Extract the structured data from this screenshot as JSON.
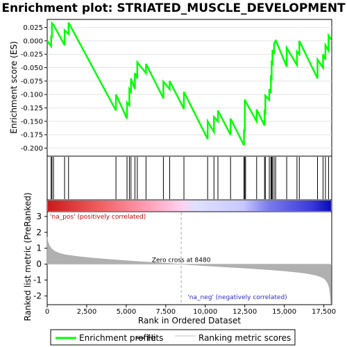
{
  "chart_data": {
    "title": "Enrichment plot: STRIATED_MUSCLE_DEVELOPMENT",
    "top_panel": {
      "type": "line",
      "ylabel": "Enrichment score (ES)",
      "ylim": [
        -0.215,
        0.04
      ],
      "yticks": [
        0.025,
        0.0,
        -0.025,
        -0.05,
        -0.075,
        -0.1,
        -0.125,
        -0.15,
        -0.175,
        -0.2
      ],
      "ytick_labels": [
        "0.025",
        "0.000",
        "-0.025",
        "-0.050",
        "-0.075",
        "-0.100",
        "-0.125",
        "-0.150",
        "-0.175",
        "-0.200"
      ],
      "series": [
        {
          "name": "Enrichment profile",
          "color": "#00ff00",
          "x": [
            0,
            250,
            250,
            300,
            300,
            400,
            400,
            1100,
            1100,
            1350,
            1350,
            4350,
            4350,
            5050,
            5050,
            5200,
            5200,
            5300,
            5300,
            5550,
            5550,
            5700,
            5700,
            6250,
            6250,
            7350,
            7350,
            7750,
            7750,
            8650,
            8650,
            10150,
            10150,
            10550,
            10550,
            10800,
            10800,
            11600,
            11600,
            12450,
            12450,
            12500,
            12500,
            12550,
            12550,
            13250,
            13250,
            13750,
            13750,
            13800,
            13800,
            14050,
            14050,
            14150,
            14150,
            14200,
            14200,
            14250,
            14250,
            14350,
            14350,
            14450,
            14450,
            15150,
            15150,
            15800,
            15800,
            15950,
            15950,
            17100,
            17100,
            17450,
            17450,
            17600,
            17600,
            17800,
            17800,
            17950
          ],
          "y": [
            0.0,
            -0.01,
            0.01,
            0.005,
            0.033,
            0.03,
            0.03,
            -0.008,
            0.02,
            0.013,
            0.034,
            -0.13,
            -0.1,
            -0.145,
            -0.115,
            -0.12,
            -0.09,
            -0.095,
            -0.07,
            -0.09,
            -0.06,
            -0.07,
            -0.04,
            -0.06,
            -0.043,
            -0.107,
            -0.076,
            -0.09,
            -0.075,
            -0.127,
            -0.095,
            -0.183,
            -0.15,
            -0.17,
            -0.142,
            -0.15,
            -0.13,
            -0.175,
            -0.145,
            -0.195,
            -0.165,
            -0.17,
            -0.11,
            -0.115,
            -0.113,
            -0.15,
            -0.128,
            -0.158,
            -0.132,
            -0.134,
            -0.102,
            -0.11,
            -0.09,
            -0.097,
            -0.068,
            -0.07,
            -0.04,
            -0.042,
            -0.017,
            -0.025,
            -0.005,
            0.0,
            0.002,
            -0.048,
            -0.013,
            -0.045,
            -0.02,
            -0.025,
            0.0,
            -0.07,
            -0.035,
            -0.05,
            -0.025,
            -0.035,
            -0.008,
            -0.018,
            0.01,
            0.003
          ]
        }
      ]
    },
    "hits": [
      250,
      300,
      400,
      1100,
      1350,
      4350,
      5050,
      5200,
      5300,
      5550,
      5700,
      6250,
      7350,
      7750,
      8650,
      10150,
      10550,
      10800,
      11600,
      12450,
      12500,
      12550,
      13250,
      13750,
      13800,
      14050,
      14150,
      14200,
      14250,
      14350,
      14450,
      15150,
      15800,
      15950,
      17100,
      17450,
      17600,
      17800
    ],
    "ranking_bar": {
      "positive_label": "'na_pos' (positively correlated)",
      "negative_label": "'na_neg' (negatively correlated)",
      "positive_color": "#cc0000",
      "negative_color": "#0000cc"
    },
    "bottom_panel": {
      "type": "area",
      "ylabel": "Ranked list metric (PreRanked)",
      "xlabel": "Rank in Ordered Dataset",
      "ylim": [
        -2.55,
        3.3
      ],
      "yticks": [
        3,
        2,
        1,
        0,
        -1,
        -2
      ],
      "ytick_labels": [
        "3",
        "2",
        "1",
        "0",
        "-1",
        "-2"
      ],
      "xlim": [
        0,
        18000
      ],
      "xticks": [
        0,
        2500,
        5000,
        7500,
        10000,
        12500,
        15000,
        17500
      ],
      "xtick_labels": [
        "0",
        "2,500",
        "5,000",
        "7,500",
        "10,000",
        "12,500",
        "15,000",
        "17,500"
      ],
      "zero_cross_label": "Zero cross at 8480",
      "zero_cross": 8480,
      "fill_color": "#b0b0b0",
      "metric_x": [
        0,
        50,
        150,
        300,
        500,
        800,
        1200,
        2000,
        3000,
        4000,
        5000,
        6000,
        7000,
        8000,
        8480,
        9000,
        10000,
        11000,
        12000,
        13000,
        14000,
        15000,
        16000,
        16500,
        17000,
        17300,
        17500,
        17650,
        17750,
        17850,
        17900,
        17950
      ],
      "metric_y": [
        1.7,
        1.4,
        1.15,
        0.95,
        0.8,
        0.68,
        0.58,
        0.47,
        0.37,
        0.29,
        0.22,
        0.15,
        0.09,
        0.03,
        0.0,
        -0.04,
        -0.1,
        -0.16,
        -0.22,
        -0.28,
        -0.35,
        -0.43,
        -0.53,
        -0.6,
        -0.7,
        -0.8,
        -0.9,
        -1.05,
        -1.2,
        -1.5,
        -1.9,
        -2.5
      ]
    },
    "legend": [
      {
        "label": "Enrichment profile",
        "color": "#00ff00"
      },
      {
        "label": "Hits",
        "color": "#000000"
      },
      {
        "label": "Ranking metric scores",
        "color": "#c0c0c0"
      }
    ]
  }
}
